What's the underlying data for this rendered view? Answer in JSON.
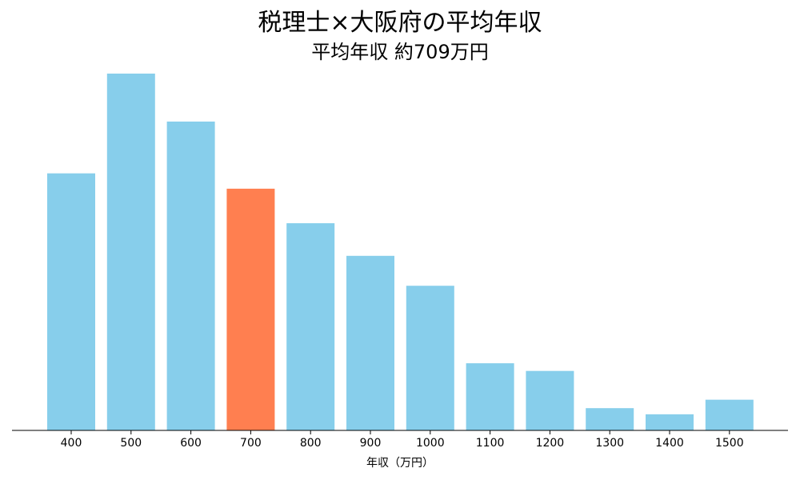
{
  "chart_data": {
    "type": "bar",
    "title": "税理士×大阪府の平均年収",
    "subtitle": "平均年収 約709万円",
    "xlabel": "年収（万円）",
    "ylabel": "",
    "categories": [
      "400",
      "500",
      "600",
      "700",
      "800",
      "900",
      "1000",
      "1100",
      "1200",
      "1300",
      "1400",
      "1500"
    ],
    "values": [
      6.7,
      9.3,
      8.05,
      6.3,
      5.4,
      4.55,
      3.77,
      1.75,
      1.55,
      0.58,
      0.42,
      0.8
    ],
    "ylim": [
      0,
      9.3
    ],
    "highlight_category": "700",
    "colors": {
      "bar": "#87CEEB",
      "highlight": "#FF7F50",
      "axis": "#000000"
    },
    "grid": false,
    "y_axis_visible": false
  }
}
